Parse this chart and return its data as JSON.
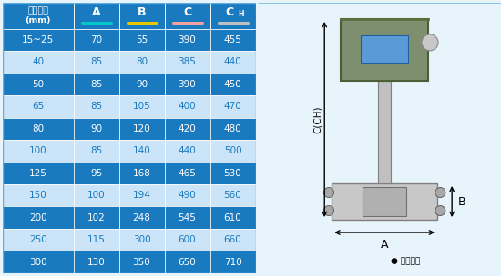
{
  "header_col0": "仪表口径\n(mm)",
  "header_cols": [
    "A",
    "B",
    "C",
    "CH"
  ],
  "header_line_colors": [
    "#00c8c8",
    "#e6c800",
    "#f0a0a0",
    "#c0c0c0"
  ],
  "rows": [
    [
      "15~25",
      "70",
      "55",
      "390",
      "455"
    ],
    [
      "40",
      "85",
      "80",
      "385",
      "440"
    ],
    [
      "50",
      "85",
      "90",
      "390",
      "450"
    ],
    [
      "65",
      "85",
      "105",
      "400",
      "470"
    ],
    [
      "80",
      "90",
      "120",
      "420",
      "480"
    ],
    [
      "100",
      "85",
      "140",
      "440",
      "500"
    ],
    [
      "125",
      "95",
      "168",
      "465",
      "530"
    ],
    [
      "150",
      "100",
      "194",
      "490",
      "560"
    ],
    [
      "200",
      "102",
      "248",
      "545",
      "610"
    ],
    [
      "250",
      "115",
      "300",
      "600",
      "660"
    ],
    [
      "300",
      "130",
      "350",
      "650",
      "710"
    ]
  ],
  "dark_rows_idx": [
    0,
    2,
    4,
    6,
    8,
    10
  ],
  "dark_row_bg": "#1a7abf",
  "light_row_bg": "#cce4f7",
  "header_bg": "#1a7abf",
  "text_color_dark": "#ffffff",
  "text_color_light": "#1a7abf",
  "fig_bg": "#e8f4fb",
  "border_color": "#5dade2",
  "label_C_CH": "C(CH)",
  "label_A": "A",
  "label_B": "B",
  "note_text": "● 常规仪表"
}
